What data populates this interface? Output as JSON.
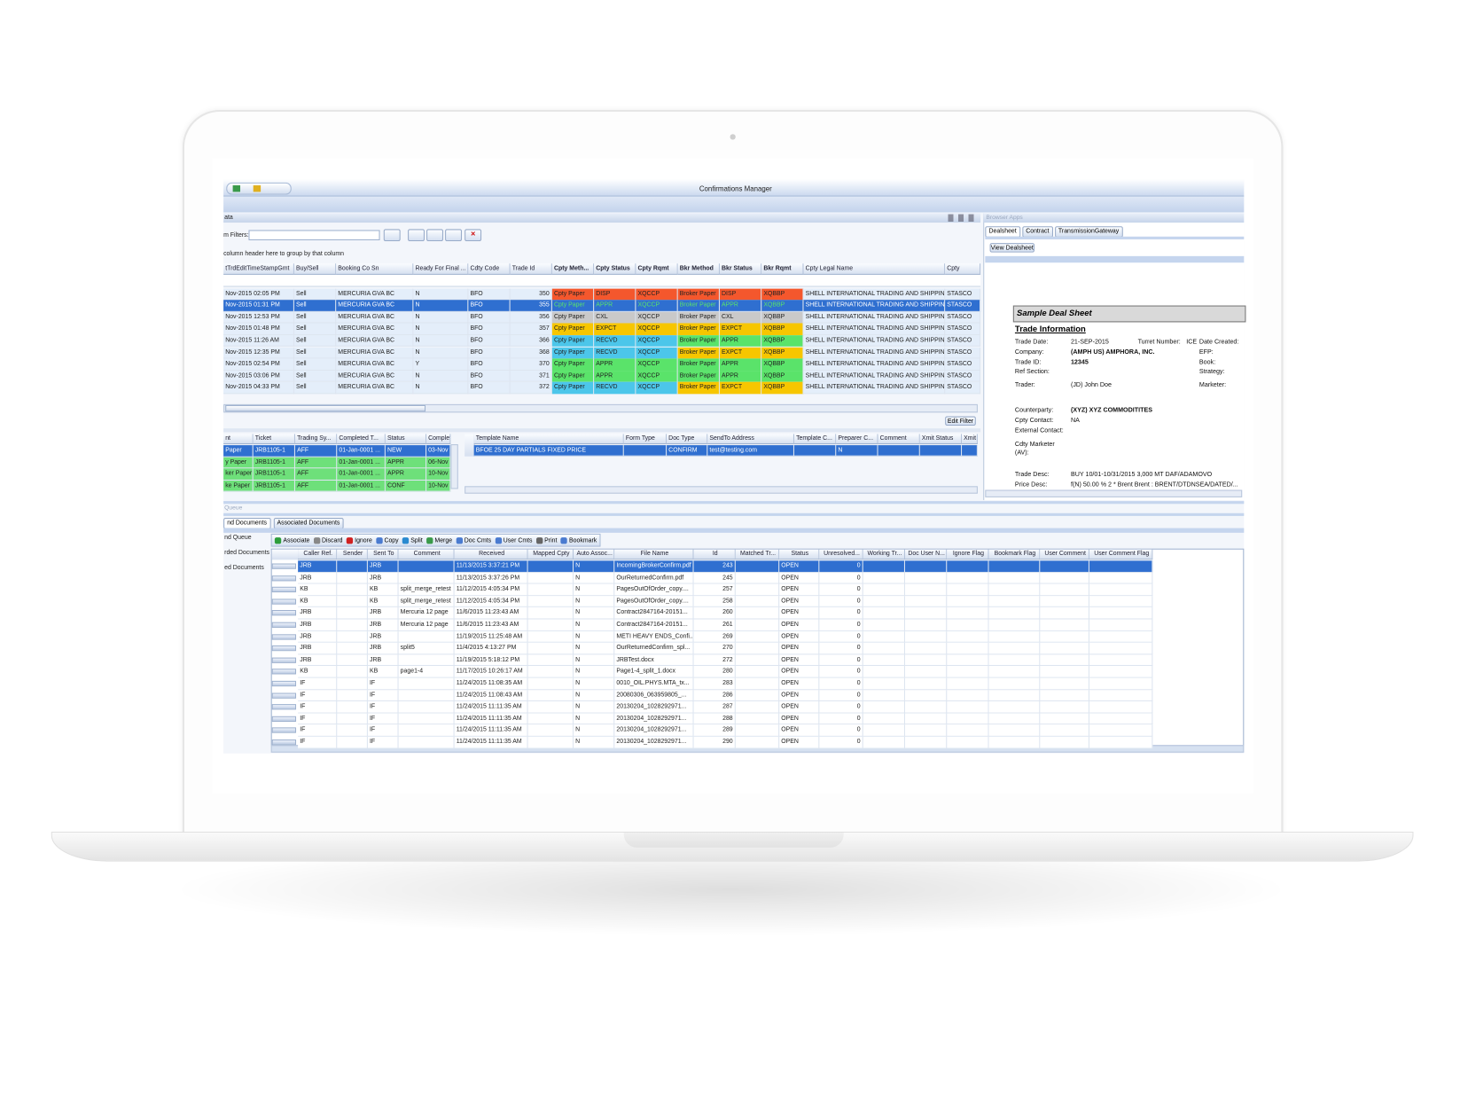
{
  "window_title": "Confirmations Manager",
  "top_panel": {
    "tab": "ata",
    "filter_label": "m Filters:",
    "group_hint": "column header here to group by that column",
    "edit_filter": "Edit Filter",
    "selected_row": 1,
    "status_colors": {
      "DISP": "#f4572d",
      "APPR": "#5ae36a",
      "CXL": "#c9c9c9",
      "EXPCT": "#f7c600",
      "RECVD": "#4cc6ea"
    },
    "columns": [
      "tTrdEditTimeStampGmt",
      "Buy/Sell",
      "Booking Co Sn",
      "Ready For Final ...",
      "Cdty Code",
      "Trade Id",
      "Cpty Meth...",
      "Cpty Status",
      "Cpty Rqmt",
      "Bkr Method",
      "Bkr Status",
      "Bkr Rqmt",
      "Cpty Legal Name",
      "Cpty"
    ],
    "rows": [
      [
        "Nov-2015 02:05 PM",
        "Sell",
        "MERCURIA GVA BC",
        "N",
        "BFO",
        350,
        "Cpty Paper",
        "DISP",
        "XQCCP",
        "Broker Paper",
        "DISP",
        "XQBBP",
        "SHELL INTERNATIONAL TRADING AND SHIPPIN...",
        "STASCO"
      ],
      [
        "Nov-2015 01:31 PM",
        "Sell",
        "MERCURIA GVA BC",
        "N",
        "BFO",
        355,
        "Cpty Paper",
        "APPR",
        "XQCCP",
        "Broker Paper",
        "APPR",
        "XQBBP",
        "SHELL INTERNATIONAL TRADING AND SHIPPIN...",
        "STASCO"
      ],
      [
        "Nov-2015 12:53 PM",
        "Sell",
        "MERCURIA GVA BC",
        "N",
        "BFO",
        356,
        "Cpty Paper",
        "CXL",
        "XQCCP",
        "Broker Paper",
        "CXL",
        "XQBBP",
        "SHELL INTERNATIONAL TRADING AND SHIPPIN...",
        "STASCO"
      ],
      [
        "Nov-2015 01:48 PM",
        "Sell",
        "MERCURIA GVA BC",
        "N",
        "BFO",
        357,
        "Cpty Paper",
        "EXPCT",
        "XQCCP",
        "Broker Paper",
        "EXPCT",
        "XQBBP",
        "SHELL INTERNATIONAL TRADING AND SHIPPIN...",
        "STASCO"
      ],
      [
        "Nov-2015 11:26 AM",
        "Sell",
        "MERCURIA GVA BC",
        "N",
        "BFO",
        366,
        "Cpty Paper",
        "RECVD",
        "XQCCP",
        "Broker Paper",
        "APPR",
        "XQBBP",
        "SHELL INTERNATIONAL TRADING AND SHIPPIN...",
        "STASCO"
      ],
      [
        "Nov-2015 12:35 PM",
        "Sell",
        "MERCURIA GVA BC",
        "N",
        "BFO",
        368,
        "Cpty Paper",
        "RECVD",
        "XQCCP",
        "Broker Paper",
        "EXPCT",
        "XQBBP",
        "SHELL INTERNATIONAL TRADING AND SHIPPIN...",
        "STASCO"
      ],
      [
        "Nov-2015 02:54 PM",
        "Sell",
        "MERCURIA GVA BC",
        "Y",
        "BFO",
        370,
        "Cpty Paper",
        "APPR",
        "XQCCP",
        "Broker Paper",
        "APPR",
        "XQBBP",
        "SHELL INTERNATIONAL TRADING AND SHIPPIN...",
        "STASCO"
      ],
      [
        "Nov-2015 03:06 PM",
        "Sell",
        "MERCURIA GVA BC",
        "N",
        "BFO",
        371,
        "Cpty Paper",
        "APPR",
        "XQCCP",
        "Broker Paper",
        "APPR",
        "XQBBP",
        "SHELL INTERNATIONAL TRADING AND SHIPPIN...",
        "STASCO"
      ],
      [
        "Nov-2015 04:33 PM",
        "Sell",
        "MERCURIA GVA BC",
        "N",
        "BFO",
        372,
        "Cpty Paper",
        "RECVD",
        "XQCCP",
        "Broker Paper",
        "EXPCT",
        "XQBBP",
        "SHELL INTERNATIONAL TRADING AND SHIPPIN...",
        "STASCO"
      ]
    ]
  },
  "ticket_table": {
    "selected_row": 0,
    "row_color": "#6ee07a",
    "columns": [
      "nt",
      "Ticket",
      "Trading Sy...",
      "Completed T...",
      "Status",
      "Completed"
    ],
    "rows": [
      [
        "Paper",
        "JRB1105-1",
        "AFF",
        "01-Jan-0001 ...",
        "NEW",
        "03-Nov"
      ],
      [
        "y Paper",
        "JRB1105-1",
        "AFF",
        "01-Jan-0001 ...",
        "APPR",
        "06-Nov"
      ],
      [
        "ker Paper",
        "JRB1105-1",
        "AFF",
        "01-Jan-0001 ...",
        "APPR",
        "10-Nov"
      ],
      [
        "ke Paper",
        "JRB1105-1",
        "AFF",
        "01-Jan-0001 ...",
        "CONF",
        "10-Nov"
      ]
    ]
  },
  "template_table": {
    "selected_row": 0,
    "columns": [
      "Template Name",
      "Form Type",
      "Doc Type",
      "SendTo Address",
      "Template C...",
      "Preparer C...",
      "Comment",
      "Xmit Status",
      "Xmit"
    ],
    "rows": [
      [
        "BFOE 25 DAY PARTIALS FIXED PRICE",
        null,
        "CONFIRM",
        "test@testing.com",
        null,
        "N",
        null,
        null,
        null
      ]
    ]
  },
  "browser_apps": {
    "title": "Browser Apps",
    "tabs": [
      "Dealsheet",
      "Contract",
      "TransmissionGateway"
    ],
    "button": "View Dealsheet",
    "dealsheet": {
      "title": "Sample Deal Sheet",
      "section": "Trade Information",
      "fields": [
        {
          "label": "Trade Date:",
          "value": "21-SEP-2015"
        },
        {
          "label": "Turret Number:",
          "value": "ICE"
        },
        {
          "label": "Date Created:"
        },
        {
          "label": "Company:",
          "value": "(AMPH US) AMPHORA, INC."
        },
        {
          "label": "EFP:"
        },
        {
          "label": "Trade ID:",
          "value": "12345"
        },
        {
          "label": "Book:"
        },
        {
          "label": "Ref Section:"
        },
        {
          "label": "Strategy:"
        },
        {
          "label": "Trader:",
          "value": "(JD) John Doe"
        },
        {
          "label": "Marketer:"
        },
        {
          "label": "Counterparty:",
          "value": "(XYZ) XYZ COMMODITITES"
        },
        {
          "label": "Cpty Contact:",
          "value": "NA"
        },
        {
          "label": "External Contact:"
        },
        {
          "label": "Cdty Marketer (AV):"
        },
        {
          "label": "Trade Desc:",
          "value": "BUY 10/01-10/31/2015 3,000 MT DAF/ADAMOVO"
        },
        {
          "label": "Price Desc:",
          "value": "f(N) 50.00 % 2 * Brent Brent : BRENT/DTDNSEA/DATED/..."
        }
      ]
    }
  },
  "queue": {
    "title": "Queue",
    "tabs": [
      "nd Documents",
      "Associated Documents"
    ],
    "sidebar": [
      "nd Queue",
      "rded Documents",
      "ed Documents"
    ],
    "toolbar": [
      "Associate",
      "Discard",
      "Ignore",
      "Copy",
      "Split",
      "Merge",
      "Doc Cmts",
      "User Cmts",
      "Print",
      "Bookmark"
    ],
    "selected_row": 0,
    "columns": [
      "Caller Ref.",
      "Sender",
      "Sent To",
      "Comment",
      "Received",
      "Mapped Cpty",
      "Auto Assoc...",
      "File Name",
      "Id",
      "Matched Tr...",
      "Status",
      "Unresolved...",
      "Working Tr...",
      "Doc User N...",
      "Ignore Flag",
      "Bookmark Flag",
      "User Comment",
      "User Comment Flag"
    ],
    "rows": [
      [
        "JRB",
        null,
        "JRB",
        null,
        "11/13/2015 3:37:21 PM",
        null,
        "N",
        "IncomingBrokerConfirm.pdf",
        243,
        null,
        "OPEN",
        0,
        null,
        null,
        null,
        null,
        null,
        null
      ],
      [
        "JRB",
        null,
        "JRB",
        null,
        "11/13/2015 3:37:26 PM",
        null,
        "N",
        "OurReturnedConfirm.pdf",
        245,
        null,
        "OPEN",
        0,
        null,
        null,
        null,
        null,
        null,
        null
      ],
      [
        "KB",
        null,
        "KB",
        "split_merge_retest",
        "11/12/2015 4:05:34 PM",
        null,
        "N",
        "PagesOutOfOrder_copy....",
        257,
        null,
        "OPEN",
        0,
        null,
        null,
        null,
        null,
        null,
        null
      ],
      [
        "KB",
        null,
        "KB",
        "split_merge_retest",
        "11/12/2015 4:05:34 PM",
        null,
        "N",
        "PagesOutOfOrder_copy....",
        258,
        null,
        "OPEN",
        0,
        null,
        null,
        null,
        null,
        null,
        null
      ],
      [
        "JRB",
        null,
        "JRB",
        "Mercuria 12 page",
        "11/6/2015 11:23:43 AM",
        null,
        "N",
        "Contract2847164-20151...",
        260,
        null,
        "OPEN",
        0,
        null,
        null,
        null,
        null,
        null,
        null
      ],
      [
        "JRB",
        null,
        "JRB",
        "Mercuria 12 page",
        "11/6/2015 11:23:43 AM",
        null,
        "N",
        "Contract2847164-20151...",
        261,
        null,
        "OPEN",
        0,
        null,
        null,
        null,
        null,
        null,
        null
      ],
      [
        "JRB",
        null,
        "JRB",
        null,
        "11/19/2015 11:25:48 AM",
        null,
        "N",
        "METI HEAVY ENDS_Confi...",
        269,
        null,
        "OPEN",
        0,
        null,
        null,
        null,
        null,
        null,
        null
      ],
      [
        "JRB",
        null,
        "JRB",
        "split5",
        "11/4/2015 4:13:27 PM",
        null,
        "N",
        "OurReturnedConfirm_spl...",
        270,
        null,
        "OPEN",
        0,
        null,
        null,
        null,
        null,
        null,
        null
      ],
      [
        "JRB",
        null,
        "JRB",
        null,
        "11/19/2015 5:18:12 PM",
        null,
        "N",
        "JRBTest.docx",
        272,
        null,
        "OPEN",
        0,
        null,
        null,
        null,
        null,
        null,
        null
      ],
      [
        "KB",
        null,
        "KB",
        "page1-4",
        "11/17/2015 10:26:17 AM",
        null,
        "N",
        "Page1-4_split_1.docx",
        280,
        null,
        "OPEN",
        0,
        null,
        null,
        null,
        null,
        null,
        null
      ],
      [
        "IF",
        null,
        "IF",
        null,
        "11/24/2015 11:08:35 AM",
        null,
        "N",
        "0010_OIL.PHYS.MTA_tx...",
        283,
        null,
        "OPEN",
        0,
        null,
        null,
        null,
        null,
        null,
        null
      ],
      [
        "IF",
        null,
        "IF",
        null,
        "11/24/2015 11:08:43 AM",
        null,
        "N",
        "20080306_063959805_...",
        286,
        null,
        "OPEN",
        0,
        null,
        null,
        null,
        null,
        null,
        null
      ],
      [
        "IF",
        null,
        "IF",
        null,
        "11/24/2015 11:11:35 AM",
        null,
        "N",
        "20130204_1028292971...",
        287,
        null,
        "OPEN",
        0,
        null,
        null,
        null,
        null,
        null,
        null
      ],
      [
        "IF",
        null,
        "IF",
        null,
        "11/24/2015 11:11:35 AM",
        null,
        "N",
        "20130204_1028292971...",
        288,
        null,
        "OPEN",
        0,
        null,
        null,
        null,
        null,
        null,
        null
      ],
      [
        "IF",
        null,
        "IF",
        null,
        "11/24/2015 11:11:35 AM",
        null,
        "N",
        "20130204_1028292971...",
        289,
        null,
        "OPEN",
        0,
        null,
        null,
        null,
        null,
        null,
        null
      ],
      [
        "IF",
        null,
        "IF",
        null,
        "11/24/2015 11:11:35 AM",
        null,
        "N",
        "20130204_1028292971...",
        290,
        null,
        "OPEN",
        0,
        null,
        null,
        null,
        null,
        null,
        null
      ]
    ]
  }
}
